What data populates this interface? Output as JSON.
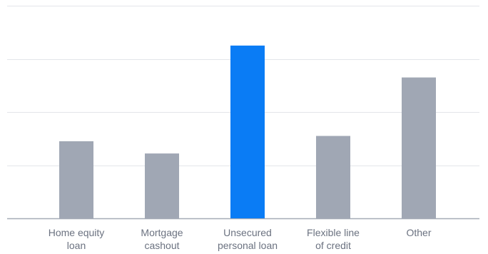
{
  "chart_data": {
    "type": "bar",
    "categories": [
      [
        "Home equity",
        "loan"
      ],
      [
        "Mortgage",
        "cashout"
      ],
      [
        "Unsecured",
        "personal loan"
      ],
      [
        "Flexible line",
        "of credit"
      ],
      [
        "Other"
      ]
    ],
    "values": [
      14.5,
      12.2,
      32.5,
      15.5,
      26.5
    ],
    "highlight_index": 2,
    "ylim": [
      0,
      40
    ],
    "y_gridlines": [
      0,
      10,
      20,
      30,
      40
    ],
    "grid": true,
    "title": "",
    "xlabel": "",
    "ylabel": "",
    "colors": {
      "bar": "#a0a7b4",
      "highlight": "#0a7cf5",
      "grid": "#e3e5e9",
      "baseline": "#a5abb6"
    }
  }
}
